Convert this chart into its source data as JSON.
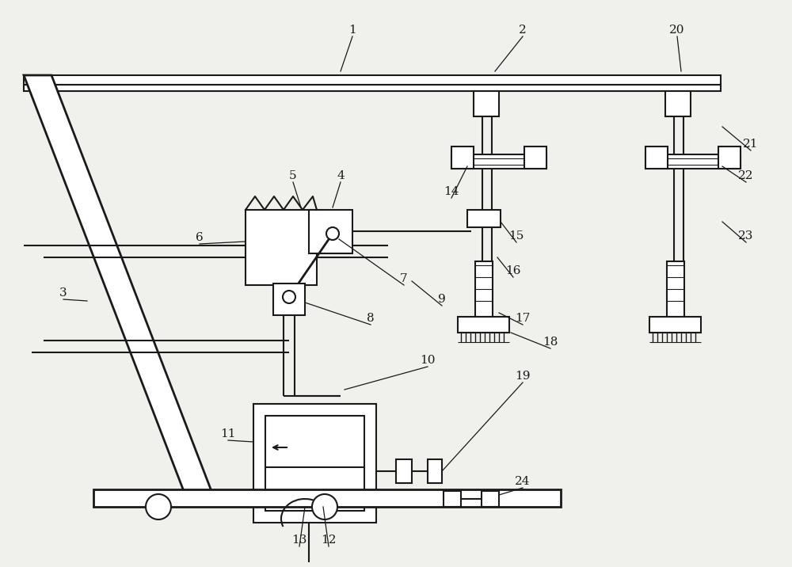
{
  "bg": "#f0f0ec",
  "lc": "#1a1a1a",
  "lw": 1.5,
  "tlw": 3.5,
  "fig_w": 10.0,
  "fig_h": 7.16
}
